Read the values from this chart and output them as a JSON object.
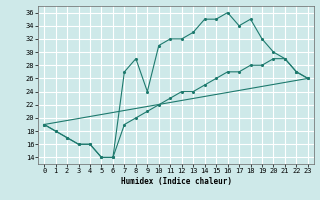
{
  "xlabel": "Humidex (Indice chaleur)",
  "background_color": "#cee9e9",
  "grid_color": "#ffffff",
  "line_color": "#1e7a6e",
  "line1_x": [
    0,
    1,
    2,
    3,
    4,
    5,
    6,
    7,
    8,
    9,
    10,
    11,
    12,
    13,
    14,
    15,
    16,
    17,
    18,
    19,
    20,
    21,
    22,
    23
  ],
  "line1_y": [
    19,
    18,
    17,
    16,
    16,
    14,
    14,
    27,
    29,
    24,
    31,
    32,
    32,
    33,
    35,
    35,
    36,
    34,
    35,
    32,
    30,
    29,
    27,
    26
  ],
  "line2_x": [
    0,
    1,
    2,
    3,
    4,
    5,
    6,
    7,
    8,
    9,
    10,
    11,
    12,
    13,
    14,
    15,
    16,
    17,
    18,
    19,
    20,
    21,
    22,
    23
  ],
  "line2_y": [
    19,
    18,
    17,
    16,
    16,
    14,
    14,
    19,
    20,
    21,
    22,
    23,
    24,
    24,
    25,
    26,
    27,
    27,
    28,
    28,
    29,
    29,
    27,
    26
  ],
  "line3_x": [
    0,
    23
  ],
  "line3_y": [
    19,
    26
  ],
  "xlim": [
    -0.5,
    23.5
  ],
  "ylim": [
    13,
    37
  ],
  "yticks": [
    14,
    16,
    18,
    20,
    22,
    24,
    26,
    28,
    30,
    32,
    34,
    36
  ],
  "xticks": [
    0,
    1,
    2,
    3,
    4,
    5,
    6,
    7,
    8,
    9,
    10,
    11,
    12,
    13,
    14,
    15,
    16,
    17,
    18,
    19,
    20,
    21,
    22,
    23
  ]
}
